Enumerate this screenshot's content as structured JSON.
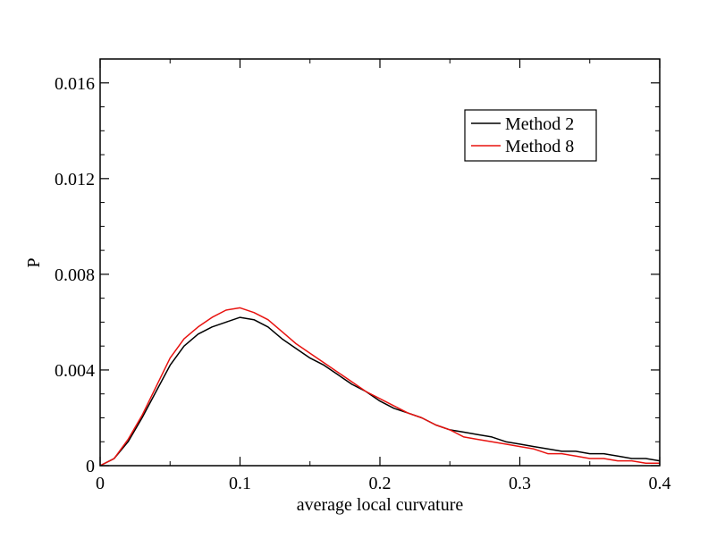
{
  "chart_data": {
    "type": "line",
    "title": "",
    "xlabel": "average local curvature",
    "ylabel": "P",
    "xlim": [
      0,
      0.4
    ],
    "ylim": [
      0,
      0.017
    ],
    "x_ticks": [
      0,
      0.1,
      0.2,
      0.3,
      0.4
    ],
    "x_tick_labels": [
      "0",
      "0.1",
      "0.2",
      "0.3",
      "0.4"
    ],
    "y_ticks": [
      0,
      0.004,
      0.008,
      0.012,
      0.016
    ],
    "y_tick_labels": [
      "0",
      "0.004",
      "0.008",
      "0.012",
      "0.016"
    ],
    "grid": false,
    "legend_position": "top-right",
    "series": [
      {
        "name": "Method 2",
        "color": "#000000",
        "x": [
          0,
          0.01,
          0.02,
          0.03,
          0.04,
          0.05,
          0.06,
          0.07,
          0.08,
          0.09,
          0.1,
          0.11,
          0.12,
          0.13,
          0.14,
          0.15,
          0.16,
          0.17,
          0.18,
          0.19,
          0.2,
          0.21,
          0.22,
          0.23,
          0.24,
          0.25,
          0.26,
          0.27,
          0.28,
          0.29,
          0.3,
          0.31,
          0.32,
          0.33,
          0.34,
          0.35,
          0.36,
          0.37,
          0.38,
          0.39,
          0.4
        ],
        "y": [
          0.0,
          0.0003,
          0.001,
          0.002,
          0.0031,
          0.0042,
          0.005,
          0.0055,
          0.0058,
          0.006,
          0.0062,
          0.0061,
          0.0058,
          0.0053,
          0.0049,
          0.0045,
          0.0042,
          0.0038,
          0.0034,
          0.0031,
          0.0027,
          0.0024,
          0.0022,
          0.002,
          0.0017,
          0.0015,
          0.0014,
          0.0013,
          0.0012,
          0.001,
          0.0009,
          0.0008,
          0.0007,
          0.0006,
          0.0006,
          0.0005,
          0.0005,
          0.0004,
          0.0003,
          0.0003,
          0.0002
        ]
      },
      {
        "name": "Method 8",
        "color": "#e8120f",
        "x": [
          0,
          0.01,
          0.02,
          0.03,
          0.04,
          0.05,
          0.06,
          0.07,
          0.08,
          0.09,
          0.1,
          0.11,
          0.12,
          0.13,
          0.14,
          0.15,
          0.16,
          0.17,
          0.18,
          0.19,
          0.2,
          0.21,
          0.22,
          0.23,
          0.24,
          0.25,
          0.26,
          0.27,
          0.28,
          0.29,
          0.3,
          0.31,
          0.32,
          0.33,
          0.34,
          0.35,
          0.36,
          0.37,
          0.38,
          0.39,
          0.4
        ],
        "y": [
          0.0,
          0.0003,
          0.0011,
          0.0021,
          0.0033,
          0.0045,
          0.0053,
          0.0058,
          0.0062,
          0.0065,
          0.0066,
          0.0064,
          0.0061,
          0.0056,
          0.0051,
          0.0047,
          0.0043,
          0.0039,
          0.0035,
          0.0031,
          0.0028,
          0.0025,
          0.0022,
          0.002,
          0.0017,
          0.0015,
          0.0012,
          0.0011,
          0.001,
          0.0009,
          0.0008,
          0.0007,
          0.0005,
          0.0005,
          0.0004,
          0.0003,
          0.0003,
          0.0002,
          0.0002,
          0.0001,
          0.0001
        ]
      }
    ]
  }
}
